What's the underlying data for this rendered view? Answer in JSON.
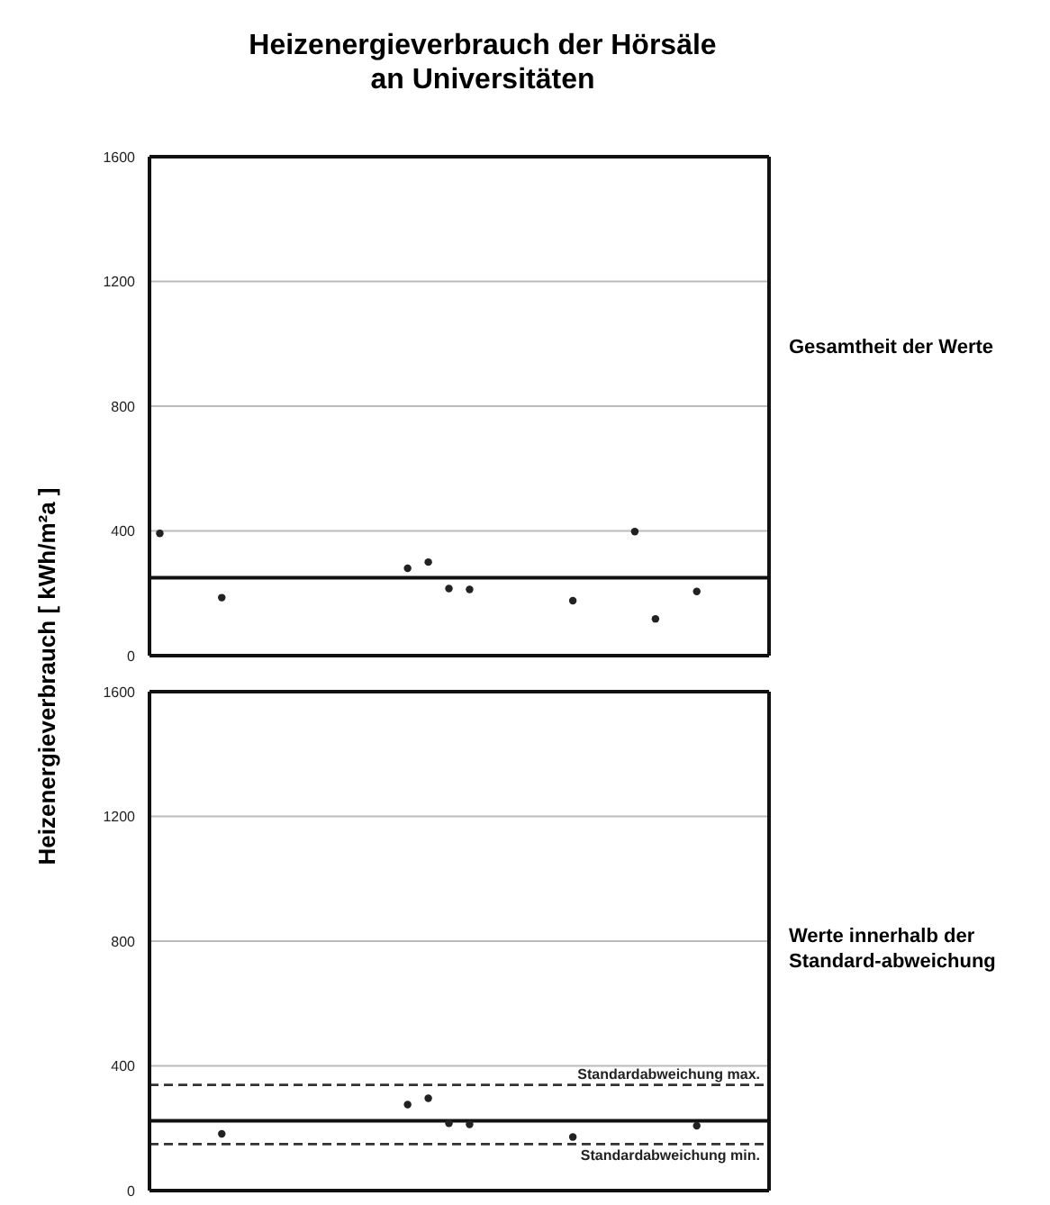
{
  "chart_data": [
    {
      "type": "scatter",
      "title": "Heizenergieverbrauch der Hörsäle an Universitäten",
      "ylabel": "Heizenergieverbrauch  [ kWh/m²a ]",
      "categories": [
        null,
        null,
        null,
        null,
        null,
        null,
        null,
        null,
        null,
        null,
        null,
        null,
        null,
        null,
        null,
        null,
        null,
        null,
        null,
        null,
        null,
        null,
        null,
        null,
        null,
        null,
        null,
        null,
        null,
        null
      ],
      "series": [
        {
          "color": "#222222",
          "values": [
            392,
            null,
            null,
            186,
            null,
            null,
            null,
            null,
            null,
            null,
            null,
            null,
            280,
            300,
            215,
            212,
            null,
            null,
            null,
            null,
            176,
            null,
            null,
            398,
            118,
            null,
            206,
            null,
            null,
            null
          ]
        }
      ],
      "ylim": [
        0,
        1600
      ],
      "yticks": [
        0,
        400,
        800,
        1200,
        1600
      ],
      "grid": "y",
      "tick_labels": "y",
      "marker": "circle",
      "ref_lines": [
        {
          "axis": "y",
          "value": 250,
          "color": "#111111",
          "line_style": "solid"
        }
      ],
      "annotations": [
        "Gesamtheit der Werte"
      ]
    },
    {
      "type": "scatter",
      "categories": [
        null,
        null,
        null,
        null,
        null,
        null,
        null,
        null,
        null,
        null,
        null,
        null,
        null,
        null,
        null,
        null,
        null,
        null,
        null,
        null,
        null,
        null,
        null,
        null,
        null,
        null,
        null,
        null,
        null,
        null
      ],
      "series": [
        {
          "color": "#222222",
          "values": [
            null,
            null,
            null,
            182,
            null,
            null,
            null,
            null,
            null,
            null,
            null,
            null,
            276,
            296,
            216,
            212,
            null,
            null,
            null,
            null,
            172,
            null,
            null,
            null,
            null,
            null,
            208,
            null,
            null,
            null
          ]
        }
      ],
      "ylim": [
        0,
        1600
      ],
      "yticks": [
        0,
        400,
        800,
        1200,
        1600
      ],
      "grid": "y",
      "tick_labels": "y",
      "marker": "circle",
      "ref_lines": [
        {
          "axis": "y",
          "value": 224,
          "color": "#111111",
          "line_style": "solid"
        },
        {
          "axis": "y",
          "value": 339,
          "label": "Standardabweichung max.",
          "color": "#333333",
          "line_style": "dashed"
        },
        {
          "axis": "y",
          "value": 149,
          "label": "Standardabweichung min.",
          "color": "#333333",
          "line_style": "dashed"
        }
      ],
      "annotations": [
        "Werte innerhalb der Standard-abweichung"
      ]
    }
  ]
}
